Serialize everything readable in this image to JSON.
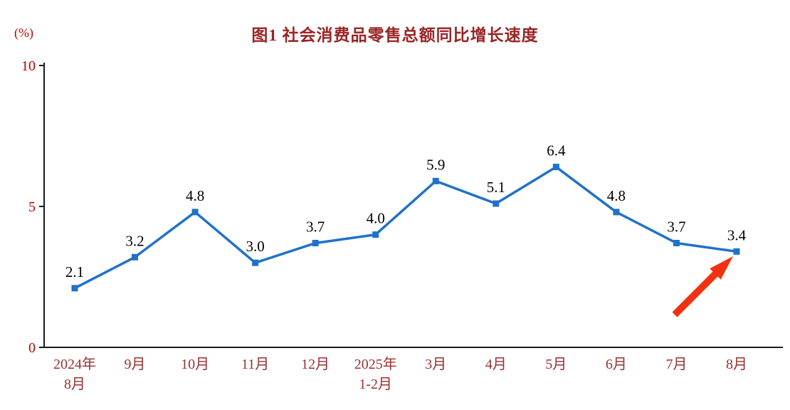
{
  "header": {
    "title": "图1  社会消费品零售总额同比增长速度",
    "unit_label": "(%)"
  },
  "colors": {
    "title": "#9a2424",
    "axis_label": "#9a3030",
    "tick_label": "#c00000",
    "line": "#1f72c8",
    "marker": "#1f72c8",
    "arrow": "#f03212",
    "axis": "#1a1a1a",
    "value_label": "#000000"
  },
  "chart_data": {
    "type": "line",
    "title": "图1  社会消费品零售总额同比增长速度",
    "ylabel": "(%)",
    "xlabel": "",
    "ylim": [
      0,
      10
    ],
    "yticks": [
      0,
      5,
      10
    ],
    "grid": false,
    "legend": "none",
    "categories": [
      [
        "2024年",
        "8月"
      ],
      [
        "9月"
      ],
      [
        "10月"
      ],
      [
        "11月"
      ],
      [
        "12月"
      ],
      [
        "2025年",
        "1-2月"
      ],
      [
        "3月"
      ],
      [
        "4月"
      ],
      [
        "5月"
      ],
      [
        "6月"
      ],
      [
        "7月"
      ],
      [
        "8月"
      ]
    ],
    "values": [
      2.1,
      3.2,
      4.8,
      3.0,
      3.7,
      4.0,
      5.9,
      5.1,
      6.4,
      4.8,
      3.7,
      3.4
    ],
    "labels": [
      "2.1",
      "3.2",
      "4.8",
      "3.0",
      "3.7",
      "4.0",
      "5.9",
      "5.1",
      "6.4",
      "4.8",
      "3.7",
      "3.4"
    ],
    "annotations": [
      "red-up-arrow pointing to last point (8月, 3.4)"
    ]
  }
}
